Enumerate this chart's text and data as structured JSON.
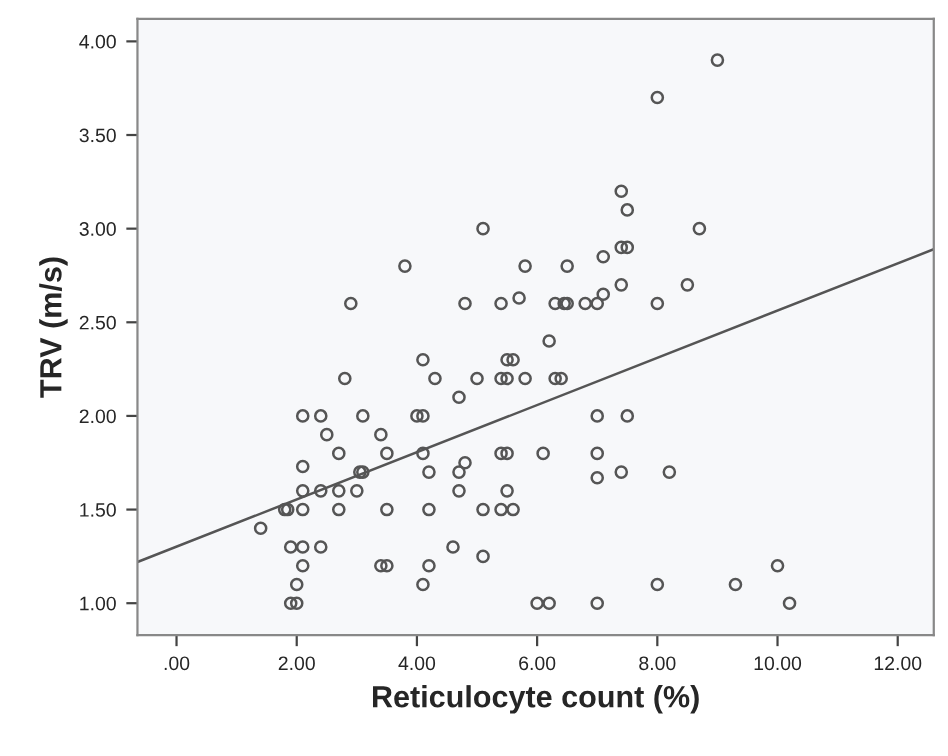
{
  "chart_data": {
    "type": "scatter",
    "xlabel": "Reticulocyte count (%)",
    "ylabel": "TRV (m/s)",
    "xlim": [
      -0.65,
      12.6
    ],
    "ylim": [
      0.83,
      4.12
    ],
    "xticks": [
      {
        "value": 0,
        "label": ".00"
      },
      {
        "value": 2,
        "label": "2.00"
      },
      {
        "value": 4,
        "label": "4.00"
      },
      {
        "value": 6,
        "label": "6.00"
      },
      {
        "value": 8,
        "label": "8.00"
      },
      {
        "value": 10,
        "label": "10.00"
      },
      {
        "value": 12,
        "label": "12.00"
      }
    ],
    "yticks": [
      {
        "value": 1,
        "label": "1.00"
      },
      {
        "value": 1.5,
        "label": "1.50"
      },
      {
        "value": 2,
        "label": "2.00"
      },
      {
        "value": 2.5,
        "label": "2.50"
      },
      {
        "value": 3,
        "label": "3.00"
      },
      {
        "value": 3.5,
        "label": "3.50"
      },
      {
        "value": 4,
        "label": "4.00"
      }
    ],
    "grid": false,
    "legend": false,
    "series": [
      {
        "color": "#555555",
        "marker": "circle",
        "x": [
          5.1,
          3.8,
          5.8,
          2.9,
          4.8,
          5.4,
          5.7,
          6.3,
          6.2,
          9.0,
          8.0,
          7.4,
          7.5,
          8.7,
          7.4,
          7.5,
          7.1,
          6.5,
          7.4,
          8.5,
          7.1,
          6.45,
          6.5,
          6.8,
          7.0,
          8.0,
          4.1,
          2.8,
          4.3,
          5.0,
          5.4,
          5.5,
          5.8,
          6.3,
          5.5,
          5.6,
          4.7,
          2.1,
          2.4,
          3.1,
          4.0,
          4.1,
          2.5,
          3.4,
          2.7,
          3.5,
          4.1,
          5.4,
          5.5,
          6.1,
          2.1,
          3.05,
          3.1,
          4.2,
          4.7,
          4.8,
          2.1,
          2.4,
          2.7,
          3.0,
          4.7,
          5.5,
          1.8,
          1.85,
          2.1,
          2.7,
          3.5,
          4.2,
          5.1,
          5.4,
          5.6,
          1.4,
          1.9,
          2.1,
          2.4,
          4.6,
          5.1,
          3.4,
          3.5,
          2.1,
          4.2,
          2.0,
          4.1,
          1.9,
          2.0,
          6.0,
          6.2,
          6.4,
          7.0,
          7.5,
          7.0,
          7.0,
          7.4,
          8.2,
          10.0,
          8.0,
          9.3,
          7.0,
          10.2
        ],
        "values": [
          3.0,
          2.8,
          2.8,
          2.6,
          2.6,
          2.6,
          2.63,
          2.6,
          2.4,
          3.9,
          3.7,
          3.2,
          3.1,
          3.0,
          2.9,
          2.9,
          2.85,
          2.8,
          2.7,
          2.7,
          2.65,
          2.6,
          2.6,
          2.6,
          2.6,
          2.6,
          2.3,
          2.2,
          2.2,
          2.2,
          2.2,
          2.2,
          2.2,
          2.2,
          2.3,
          2.3,
          2.1,
          2.0,
          2.0,
          2.0,
          2.0,
          2.0,
          1.9,
          1.9,
          1.8,
          1.8,
          1.8,
          1.8,
          1.8,
          1.8,
          1.73,
          1.7,
          1.7,
          1.7,
          1.7,
          1.75,
          1.6,
          1.6,
          1.6,
          1.6,
          1.6,
          1.6,
          1.5,
          1.5,
          1.5,
          1.5,
          1.5,
          1.5,
          1.5,
          1.5,
          1.5,
          1.4,
          1.3,
          1.3,
          1.3,
          1.3,
          1.25,
          1.2,
          1.2,
          1.2,
          1.2,
          1.1,
          1.1,
          1.0,
          1.0,
          1.0,
          1.0,
          2.2,
          2.0,
          2.0,
          1.8,
          1.67,
          1.7,
          1.7,
          1.2,
          1.1,
          1.1,
          1.0,
          1.0
        ]
      },
      {
        "type": "line",
        "marker": "none",
        "color": "#555555",
        "x": [
          -0.65,
          12.6
        ],
        "values": [
          1.22,
          2.89
        ]
      }
    ]
  }
}
